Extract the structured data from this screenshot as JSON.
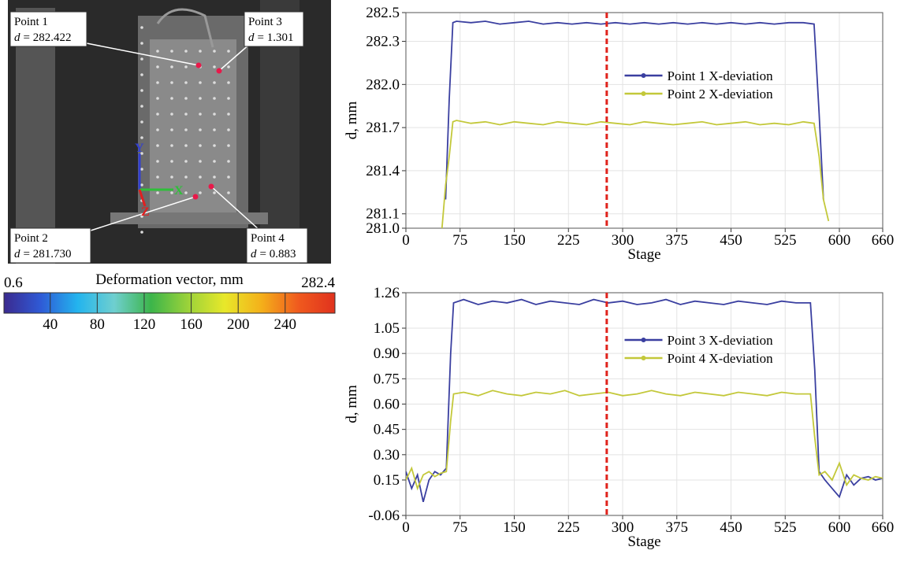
{
  "photo": {
    "points": [
      {
        "name": "Point 1",
        "symbol": "d",
        "value": "= 282.422"
      },
      {
        "name": "Point 3",
        "symbol": "d",
        "value": "= 1.301"
      },
      {
        "name": "Point 2",
        "symbol": "d",
        "value": "= 281.730"
      },
      {
        "name": "Point 4",
        "symbol": "d",
        "value": "= 0.883"
      }
    ],
    "axes": [
      "X",
      "Y",
      "Z"
    ]
  },
  "colorbar": {
    "label": "Deformation vector, mm",
    "range": [
      0.6,
      282.4
    ],
    "ticks": [
      40,
      80,
      120,
      160,
      200,
      240
    ],
    "colors": [
      "#3b2a8f",
      "#2f5ad6",
      "#23b4ee",
      "#6fcfcf",
      "#3cb54a",
      "#9bd23a",
      "#e8e82a",
      "#f4b01a",
      "#f05a1e",
      "#e0321e"
    ]
  },
  "chart_data": [
    {
      "type": "line",
      "xlabel": "Stage",
      "ylabel": "d, mm",
      "xlim": [
        0,
        660
      ],
      "xticks": [
        0,
        75,
        150,
        225,
        300,
        375,
        450,
        525,
        600,
        660
      ],
      "ylim": [
        281.0,
        282.5
      ],
      "yticks": [
        {
          "value": 281,
          "label": "281.0"
        },
        281.1,
        281.4,
        281.7,
        {
          "value": 282,
          "label": "282.0"
        },
        282.3,
        282.5
      ],
      "grid": true,
      "legend": "upper center",
      "vline": {
        "x": 278,
        "color": "#e0231c"
      },
      "x": [
        50,
        55,
        60,
        65,
        70,
        90,
        110,
        130,
        150,
        170,
        190,
        210,
        230,
        250,
        270,
        290,
        310,
        330,
        350,
        370,
        390,
        410,
        430,
        450,
        470,
        490,
        510,
        530,
        550,
        565,
        572,
        578,
        585
      ],
      "series": [
        {
          "name": "Point 1 X-deviation",
          "color": "#3a3fa0",
          "values": [
            null,
            281.2,
            281.9,
            282.43,
            282.44,
            282.43,
            282.44,
            282.42,
            282.43,
            282.44,
            282.42,
            282.43,
            282.42,
            282.43,
            282.42,
            282.43,
            282.42,
            282.43,
            282.42,
            282.43,
            282.42,
            282.43,
            282.42,
            282.43,
            282.42,
            282.43,
            282.42,
            282.43,
            282.43,
            282.42,
            281.8,
            281.2,
            null
          ]
        },
        {
          "name": "Point 2 X-deviation",
          "color": "#c3c83a",
          "values": [
            281.0,
            281.3,
            281.5,
            281.74,
            281.75,
            281.73,
            281.74,
            281.72,
            281.74,
            281.73,
            281.72,
            281.74,
            281.73,
            281.72,
            281.74,
            281.73,
            281.72,
            281.74,
            281.73,
            281.72,
            281.73,
            281.74,
            281.72,
            281.73,
            281.74,
            281.72,
            281.73,
            281.72,
            281.74,
            281.73,
            281.5,
            281.2,
            281.05
          ]
        }
      ]
    },
    {
      "type": "line",
      "xlabel": "Stage",
      "ylabel": "d, mm",
      "xlim": [
        0,
        660
      ],
      "xticks": [
        0,
        75,
        150,
        225,
        300,
        375,
        450,
        525,
        600,
        660
      ],
      "ylim": [
        -0.06,
        1.26
      ],
      "yticks": [
        -0.06,
        0.15,
        {
          "value": 0.3,
          "label": "0.30"
        },
        0.45,
        {
          "value": 0.6,
          "label": "0.60"
        },
        0.75,
        {
          "value": 0.9,
          "label": "0.90"
        },
        1.05,
        1.26
      ],
      "grid": true,
      "legend": "upper center",
      "vline": {
        "x": 278,
        "color": "#e0231c"
      },
      "x": [
        0,
        8,
        16,
        24,
        32,
        40,
        48,
        56,
        62,
        66,
        80,
        100,
        120,
        140,
        160,
        180,
        200,
        220,
        240,
        260,
        280,
        300,
        320,
        340,
        360,
        380,
        400,
        420,
        440,
        460,
        480,
        500,
        520,
        540,
        560,
        566,
        572,
        580,
        590,
        600,
        610,
        620,
        630,
        640,
        650,
        660
      ],
      "series": [
        {
          "name": "Point 3 X-deviation",
          "color": "#3a3fa0",
          "values": [
            0.2,
            0.1,
            0.18,
            0.02,
            0.15,
            0.2,
            0.18,
            0.22,
            0.9,
            1.2,
            1.22,
            1.19,
            1.21,
            1.2,
            1.22,
            1.19,
            1.21,
            1.2,
            1.19,
            1.22,
            1.2,
            1.21,
            1.19,
            1.2,
            1.22,
            1.19,
            1.21,
            1.2,
            1.19,
            1.21,
            1.2,
            1.19,
            1.21,
            1.2,
            1.2,
            0.8,
            0.2,
            0.15,
            0.1,
            0.05,
            0.18,
            0.12,
            0.16,
            0.17,
            0.15,
            0.16
          ]
        },
        {
          "name": "Point 4 X-deviation",
          "color": "#c3c83a",
          "values": [
            0.15,
            0.22,
            0.1,
            0.18,
            0.2,
            0.17,
            0.19,
            0.2,
            0.5,
            0.66,
            0.67,
            0.65,
            0.68,
            0.66,
            0.65,
            0.67,
            0.66,
            0.68,
            0.65,
            0.66,
            0.67,
            0.65,
            0.66,
            0.68,
            0.66,
            0.65,
            0.67,
            0.66,
            0.65,
            0.67,
            0.66,
            0.65,
            0.67,
            0.66,
            0.66,
            0.4,
            0.18,
            0.2,
            0.15,
            0.25,
            0.12,
            0.18,
            0.16,
            0.15,
            0.17,
            0.16
          ]
        }
      ]
    }
  ]
}
